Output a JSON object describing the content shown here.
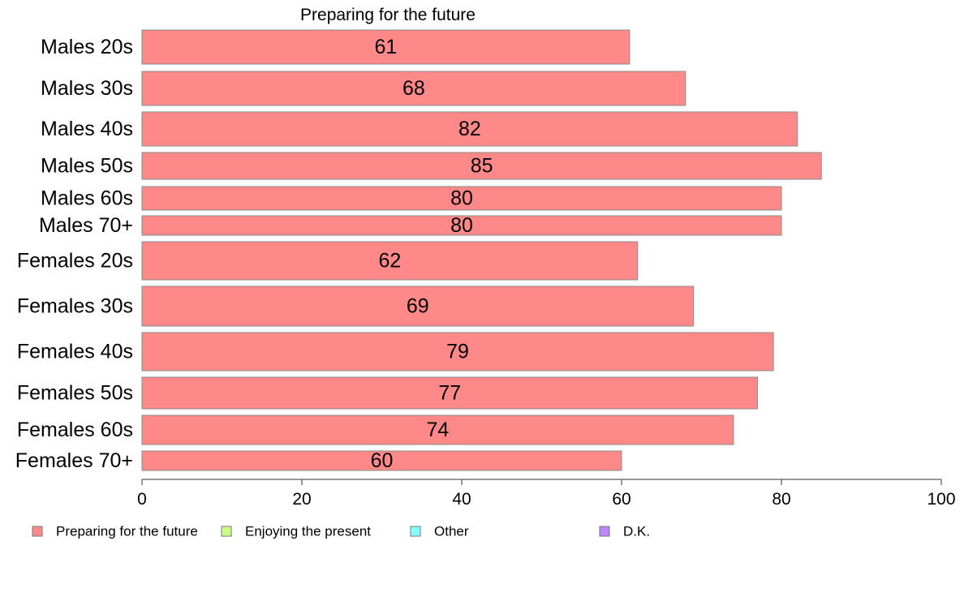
{
  "chart_data": {
    "type": "bar",
    "orientation": "horizontal",
    "title": "Preparing for the future",
    "categories": [
      "Males 20s",
      "Males 30s",
      "Males 40s",
      "Males 50s",
      "Males 60s",
      "Males 70+",
      "Females 20s",
      "Females 30s",
      "Females 40s",
      "Females 50s",
      "Females 60s",
      "Females 70+"
    ],
    "series": [
      {
        "name": "Preparing for the future",
        "values": [
          61,
          68,
          82,
          85,
          80,
          80,
          62,
          69,
          79,
          77,
          74,
          60
        ],
        "value_labels": [
          "61",
          "68",
          "82",
          "85",
          "80",
          "80",
          "62",
          "69",
          "79",
          "77",
          "74",
          "60"
        ]
      }
    ],
    "xlim": [
      0,
      100
    ],
    "xticks": [
      "0",
      "20",
      "40",
      "60",
      "80",
      "100"
    ],
    "grid": false,
    "legend": {
      "placement": "bottom",
      "items": [
        {
          "label": "Preparing for the future",
          "color": "#ff8888"
        },
        {
          "label": "Enjoying the present",
          "color": "#ccff88"
        },
        {
          "label": "Other",
          "color": "#88ffff"
        },
        {
          "label": "D.K.",
          "color": "#bb88ff"
        }
      ]
    },
    "colors": {
      "bar_fill": "#ff8888",
      "bar_stroke": "#8a8a8a",
      "axis": "#333333"
    }
  }
}
